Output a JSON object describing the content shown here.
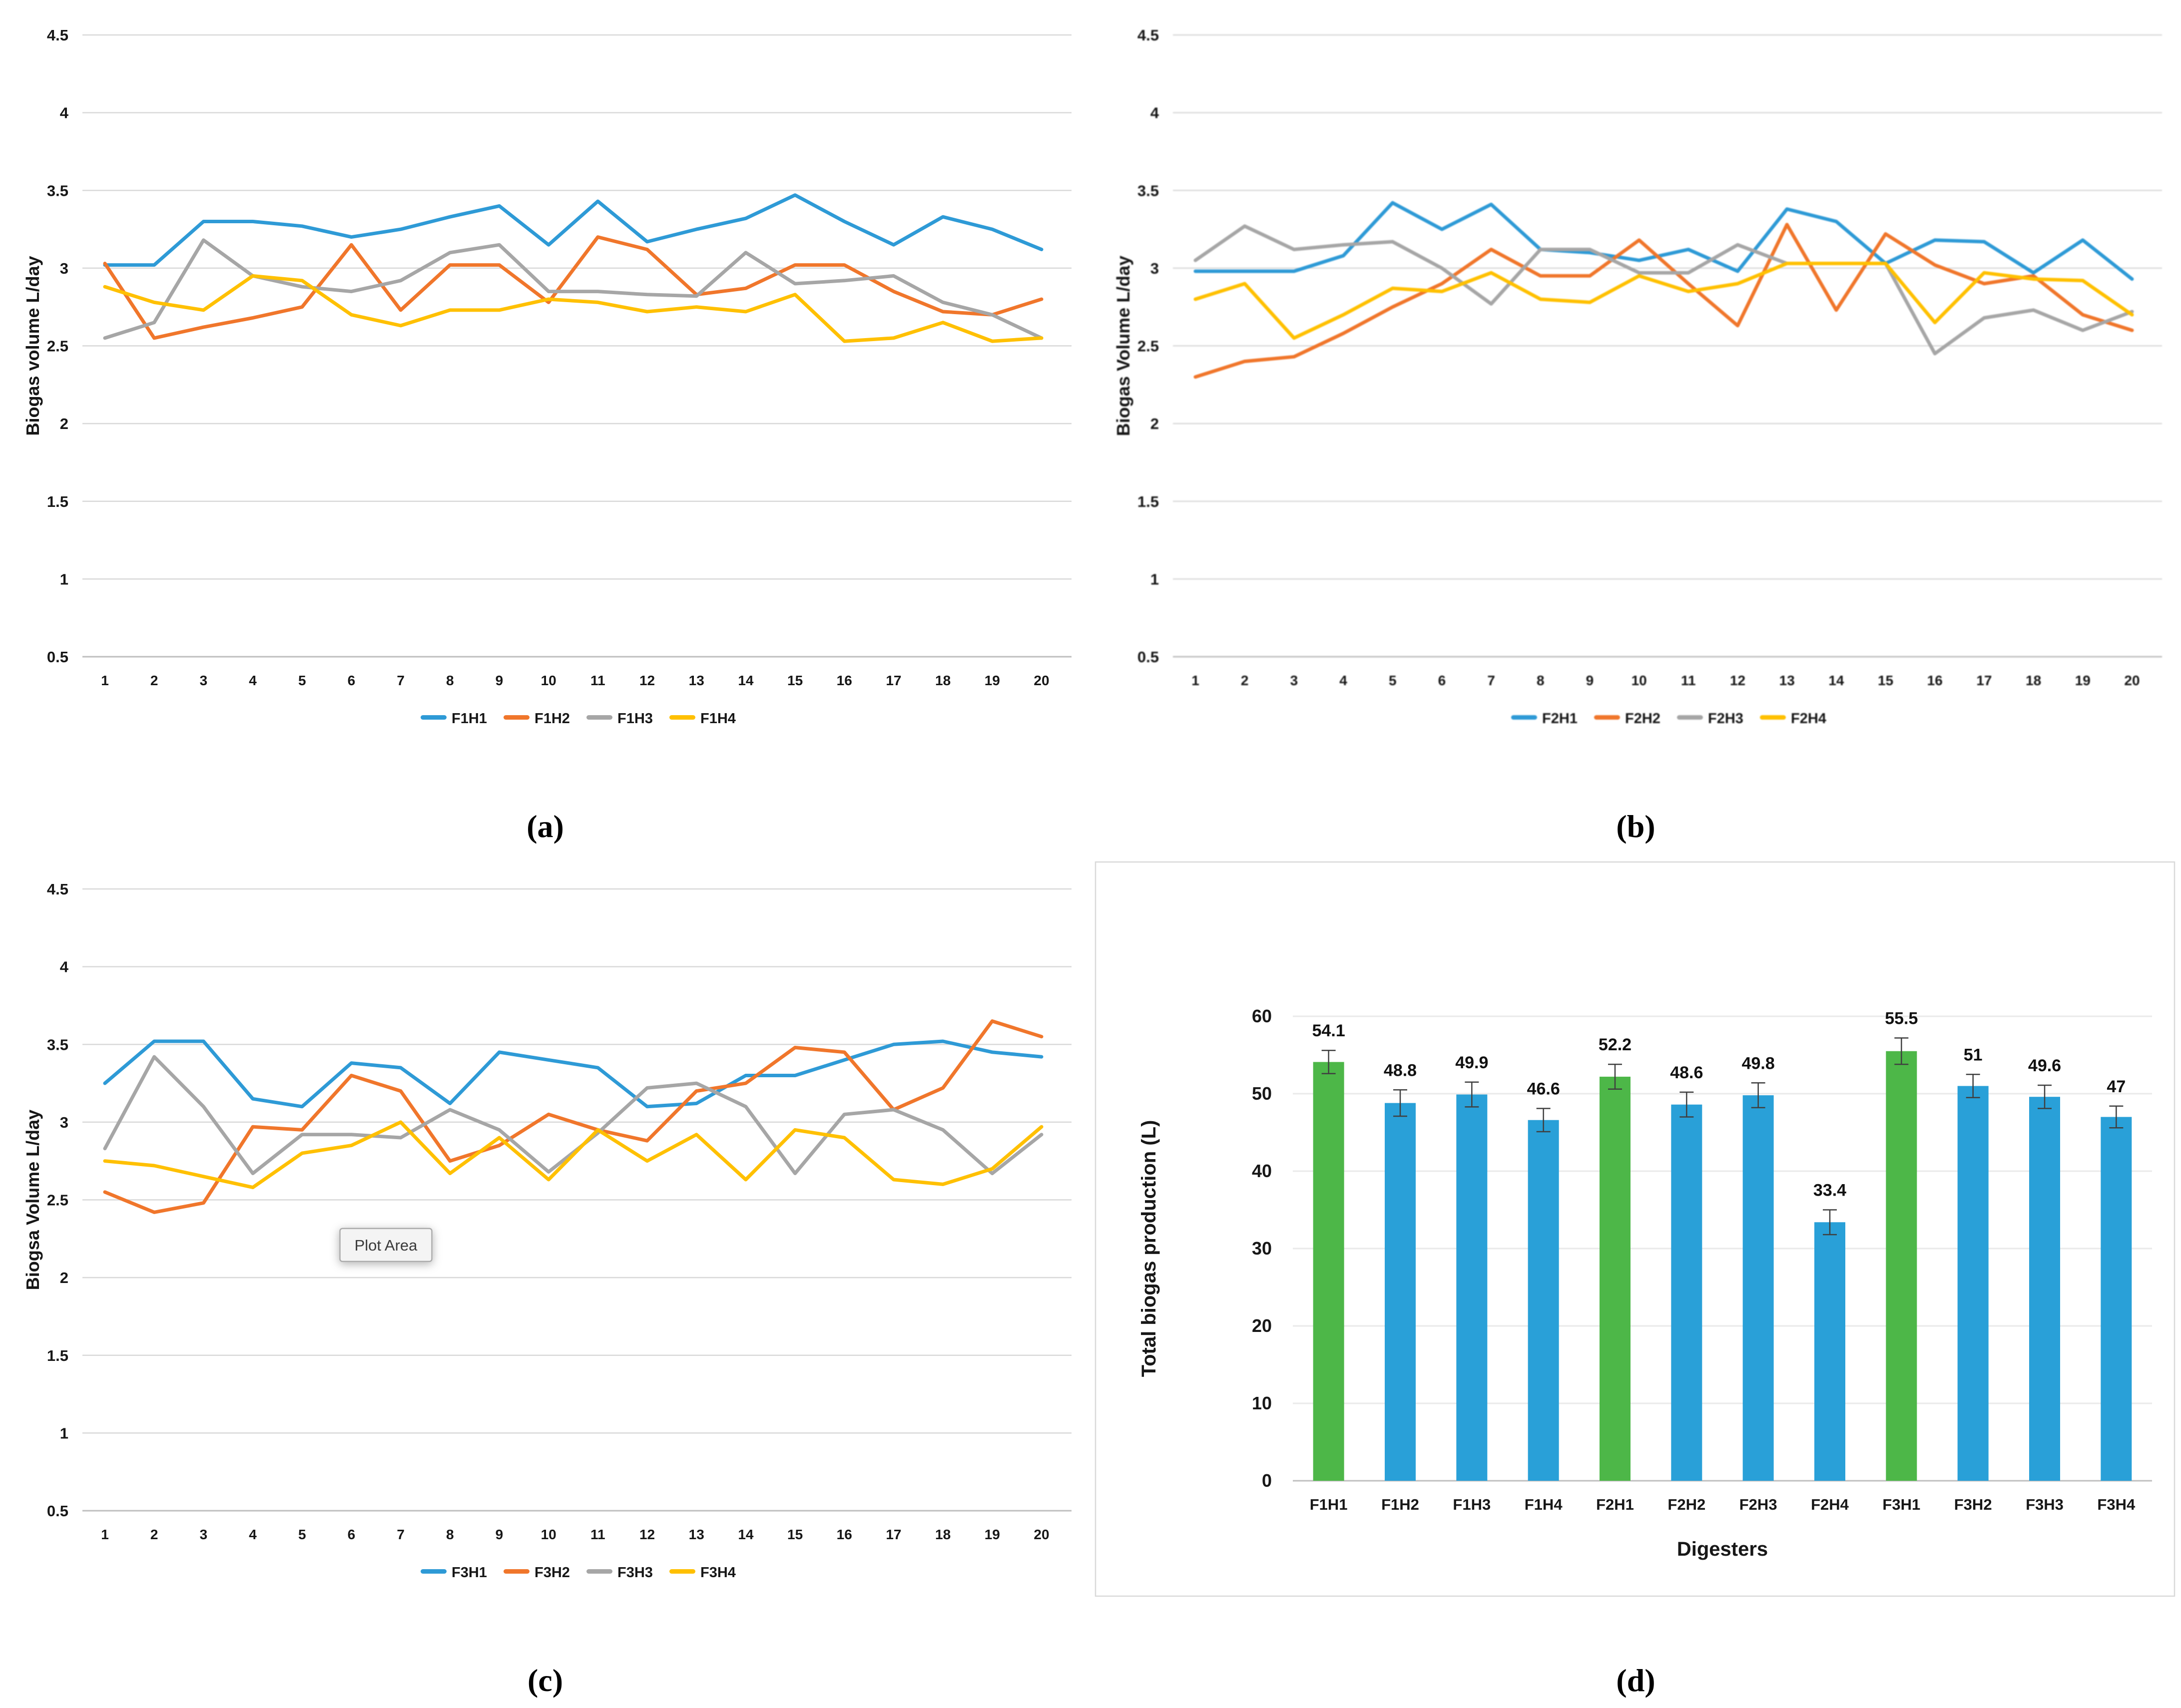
{
  "page": {
    "background": "#FFFFFF"
  },
  "palette": {
    "line_blue": "#2E9AD6",
    "line_orange": "#F0762B",
    "line_gray": "#A6A6A6",
    "line_yellow": "#FFC000",
    "bar_green": "#4DB748",
    "bar_blue": "#29A0D8",
    "gridline": "#D9D9D9",
    "axis_line": "#BFBFBF",
    "error_bar": "#3F3F3F",
    "tooltip_fill": "#F4F4F4",
    "tooltip_border": "#ABABAB",
    "frame": "#D9D9D9"
  },
  "captions": {
    "a": "(a)",
    "b": "(b)",
    "c": "(c)",
    "d": "(d)"
  },
  "chart_data": [
    {
      "id": "a",
      "type": "line",
      "ylabel": "Biogas volume L/day",
      "ylim": [
        0.5,
        4.5
      ],
      "yticks": [
        "0.5",
        "1",
        "1.5",
        "2",
        "2.5",
        "3",
        "3.5",
        "4",
        "4.5"
      ],
      "xticks": [
        "1",
        "2",
        "3",
        "4",
        "5",
        "6",
        "7",
        "8",
        "9",
        "10",
        "11",
        "12",
        "13",
        "14",
        "15",
        "16",
        "17",
        "18",
        "19",
        "20"
      ],
      "grid": true,
      "legend_position": "bottom",
      "series": [
        {
          "name": "F1H1",
          "color": "#2E9AD6",
          "values": [
            3.02,
            3.02,
            3.3,
            3.3,
            3.27,
            3.2,
            3.25,
            3.33,
            3.4,
            3.15,
            3.43,
            3.17,
            3.25,
            3.32,
            3.47,
            3.3,
            3.15,
            3.33,
            3.25,
            3.12
          ]
        },
        {
          "name": "F1H2",
          "color": "#F0762B",
          "values": [
            3.03,
            2.55,
            2.62,
            2.68,
            2.75,
            3.15,
            2.73,
            3.02,
            3.02,
            2.78,
            3.2,
            3.12,
            2.83,
            2.87,
            3.02,
            3.02,
            2.85,
            2.72,
            2.7,
            2.8
          ]
        },
        {
          "name": "F1H3",
          "color": "#A6A6A6",
          "values": [
            2.55,
            2.65,
            3.18,
            2.95,
            2.88,
            2.85,
            2.92,
            3.1,
            3.15,
            2.85,
            2.85,
            2.83,
            2.82,
            3.1,
            2.9,
            2.92,
            2.95,
            2.78,
            2.7,
            2.55
          ]
        },
        {
          "name": "F1H4",
          "color": "#FFC000",
          "values": [
            2.88,
            2.78,
            2.73,
            2.95,
            2.92,
            2.7,
            2.63,
            2.73,
            2.73,
            2.8,
            2.78,
            2.72,
            2.75,
            2.72,
            2.83,
            2.53,
            2.55,
            2.65,
            2.53,
            2.55
          ]
        }
      ]
    },
    {
      "id": "b",
      "type": "line",
      "ylabel": "Biogas Volume L/day",
      "ylim": [
        0.5,
        4.5
      ],
      "yticks": [
        "0.5",
        "1",
        "1.5",
        "2",
        "2.5",
        "3",
        "3.5",
        "4",
        "4.5"
      ],
      "xticks": [
        "1",
        "2",
        "3",
        "4",
        "5",
        "6",
        "7",
        "8",
        "9",
        "10",
        "11",
        "12",
        "13",
        "14",
        "15",
        "16",
        "17",
        "18",
        "19",
        "20"
      ],
      "grid": true,
      "legend_position": "bottom",
      "series": [
        {
          "name": "F2H1",
          "color": "#2E9AD6",
          "values": [
            2.98,
            2.98,
            2.98,
            3.08,
            3.42,
            3.25,
            3.41,
            3.12,
            3.1,
            3.05,
            3.12,
            2.98,
            3.38,
            3.3,
            3.03,
            3.18,
            3.17,
            2.97,
            3.18,
            2.93
          ]
        },
        {
          "name": "F2H2",
          "color": "#F0762B",
          "values": [
            2.3,
            2.4,
            2.43,
            2.58,
            2.75,
            2.9,
            3.12,
            2.95,
            2.95,
            3.18,
            2.9,
            2.63,
            3.28,
            2.73,
            3.22,
            3.02,
            2.9,
            2.95,
            2.7,
            2.6
          ]
        },
        {
          "name": "F2H3",
          "color": "#A6A6A6",
          "values": [
            3.05,
            3.27,
            3.12,
            3.15,
            3.17,
            3.0,
            2.77,
            3.12,
            3.12,
            2.97,
            2.97,
            3.15,
            3.03,
            3.03,
            3.03,
            2.45,
            2.68,
            2.73,
            2.6,
            2.72
          ]
        },
        {
          "name": "F2H4",
          "color": "#FFC000",
          "values": [
            2.8,
            2.9,
            2.55,
            2.7,
            2.87,
            2.85,
            2.97,
            2.8,
            2.78,
            2.95,
            2.85,
            2.9,
            3.03,
            3.03,
            3.03,
            2.65,
            2.97,
            2.93,
            2.92,
            2.7
          ]
        }
      ]
    },
    {
      "id": "c",
      "type": "line",
      "ylabel": "Biogsa Volume L/day",
      "ylim": [
        0.5,
        4.5
      ],
      "yticks": [
        "0.5",
        "1",
        "1.5",
        "2",
        "2.5",
        "3",
        "3.5",
        "4",
        "4.5"
      ],
      "xticks": [
        "1",
        "2",
        "3",
        "4",
        "5",
        "6",
        "7",
        "8",
        "9",
        "10",
        "11",
        "12",
        "13",
        "14",
        "15",
        "16",
        "17",
        "18",
        "19",
        "20"
      ],
      "grid": true,
      "legend_position": "bottom",
      "tooltip": {
        "label": "Plot Area",
        "x_value": 6.7,
        "y_value": 2.2
      },
      "series": [
        {
          "name": "F3H1",
          "color": "#2E9AD6",
          "values": [
            3.25,
            3.52,
            3.52,
            3.15,
            3.1,
            3.38,
            3.35,
            3.12,
            3.45,
            3.4,
            3.35,
            3.1,
            3.12,
            3.3,
            3.3,
            3.4,
            3.5,
            3.52,
            3.45,
            3.42
          ]
        },
        {
          "name": "F3H2",
          "color": "#F0762B",
          "values": [
            2.55,
            2.42,
            2.48,
            2.97,
            2.95,
            3.3,
            3.2,
            2.75,
            2.85,
            3.05,
            2.95,
            2.88,
            3.2,
            3.25,
            3.48,
            3.45,
            3.08,
            3.22,
            3.65,
            3.55
          ]
        },
        {
          "name": "F3H3",
          "color": "#A6A6A6",
          "values": [
            2.83,
            3.42,
            3.1,
            2.67,
            2.92,
            2.92,
            2.9,
            3.08,
            2.95,
            2.68,
            2.93,
            3.22,
            3.25,
            3.1,
            2.67,
            3.05,
            3.08,
            2.95,
            2.67,
            2.92
          ]
        },
        {
          "name": "F3H4",
          "color": "#FFC000",
          "values": [
            2.75,
            2.72,
            2.65,
            2.58,
            2.8,
            2.85,
            3.0,
            2.67,
            2.9,
            2.63,
            2.95,
            2.75,
            2.92,
            2.63,
            2.95,
            2.9,
            2.63,
            2.6,
            2.7,
            2.97
          ]
        }
      ]
    },
    {
      "id": "d",
      "type": "bar",
      "ylabel": "Total biogas production (L)",
      "xlabel": "Digesters",
      "ylim": [
        0,
        60
      ],
      "yticks": [
        "0",
        "10",
        "20",
        "30",
        "40",
        "50",
        "60"
      ],
      "grid": true,
      "framed": true,
      "categories": [
        "F1H1",
        "F1H2",
        "F1H3",
        "F1H4",
        "F2H1",
        "F2H2",
        "F2H3",
        "F2H4",
        "F3H1",
        "F3H2",
        "F3H3",
        "F3H4"
      ],
      "values": [
        54.1,
        48.8,
        49.9,
        46.6,
        52.2,
        48.6,
        49.8,
        33.4,
        55.5,
        51,
        49.6,
        47
      ],
      "value_labels": [
        "54.1",
        "48.8",
        "49.9",
        "46.6",
        "52.2",
        "48.6",
        "49.8",
        "33.4",
        "55.5",
        "51",
        "49.6",
        "47"
      ],
      "errors": [
        1.5,
        1.7,
        1.6,
        1.5,
        1.6,
        1.6,
        1.6,
        1.6,
        1.7,
        1.5,
        1.5,
        1.4
      ],
      "bar_colors": [
        "#4DB748",
        "#29A0D8",
        "#29A0D8",
        "#29A0D8",
        "#4DB748",
        "#29A0D8",
        "#29A0D8",
        "#29A0D8",
        "#4DB748",
        "#29A0D8",
        "#29A0D8",
        "#29A0D8"
      ]
    }
  ]
}
